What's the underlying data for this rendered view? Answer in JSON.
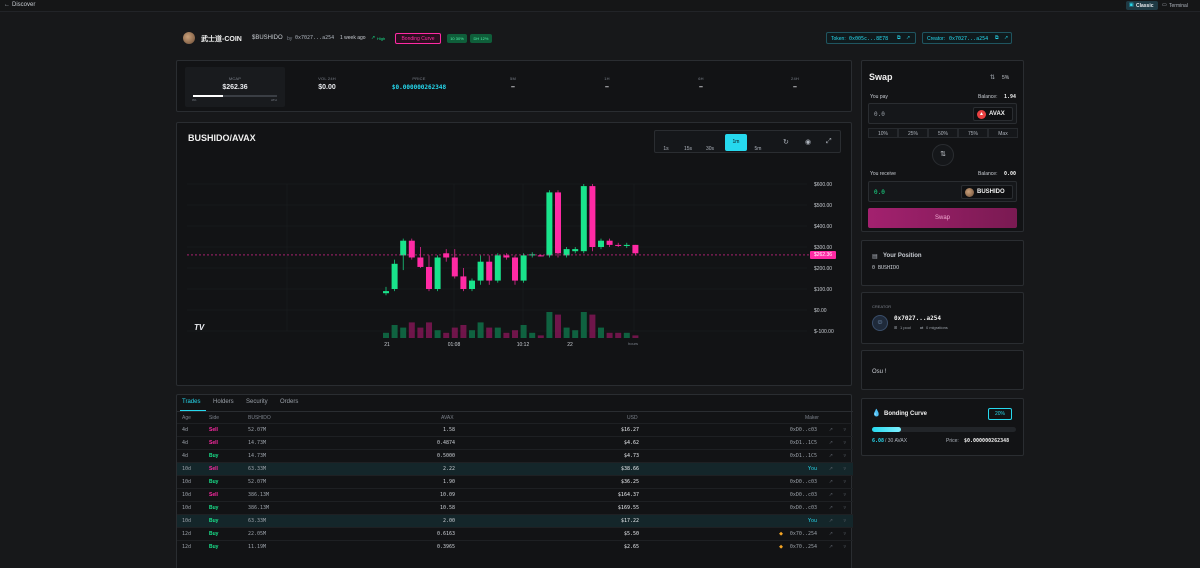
{
  "nav": {
    "discover": "Discover",
    "classic": "Classic",
    "terminal": "Terminal"
  },
  "token": {
    "name": "武士道-COIN",
    "ticker": "$BUSHIDO",
    "by": "by",
    "creator_short": "0x7027...a254",
    "age": "1 week ago",
    "high": "High",
    "bonding": "Bonding Curve",
    "badge_10": "10 30%",
    "badge_dh": "DH 12%",
    "token_label": "Token:",
    "token_addr": "0x005c...8E78",
    "creator_label": "Creator:",
    "creator_addr": "0x7027...a254"
  },
  "stats": {
    "mcap_label": "MCAP",
    "mcap": "$262.36",
    "mcap_lo": "0%",
    "mcap_hi": "ATH",
    "mcap_fill": 0.36,
    "vol_label": "VOL 24H",
    "vol": "$0.00",
    "price_label": "PRICE",
    "price": "$0.000000262348",
    "m5_label": "5M",
    "m5": "–",
    "h1_label": "1H",
    "h1": "–",
    "h6_label": "6H",
    "h6": "–",
    "h24_label": "24H",
    "h24": "–"
  },
  "chart": {
    "pair": "BUSHIDO/AVAX",
    "timeframes": [
      "1s",
      "15s",
      "30s",
      "1m",
      "5m"
    ],
    "active_tf": "1m",
    "price_tag": "$262.36",
    "logo": "TV",
    "x_unit": "hours"
  },
  "chart_data": {
    "type": "candlestick",
    "y_ticks": [
      "$600.00",
      "$500.00",
      "$400.00",
      "$300.00",
      "$200.00",
      "$100.00",
      "$0.00",
      "$-100.00"
    ],
    "ylim": [
      -100,
      600
    ],
    "x_ticks": [
      "21",
      "01:08",
      "10:12",
      "22"
    ],
    "current_price": 262.36,
    "candles": [
      {
        "o": 90,
        "h": 110,
        "l": 70,
        "c": 80,
        "up": true
      },
      {
        "o": 100,
        "h": 240,
        "l": 90,
        "c": 220,
        "up": true
      },
      {
        "o": 260,
        "h": 340,
        "l": 190,
        "c": 330,
        "up": true
      },
      {
        "o": 330,
        "h": 340,
        "l": 240,
        "c": 250,
        "up": false
      },
      {
        "o": 250,
        "h": 300,
        "l": 200,
        "c": 205,
        "up": false
      },
      {
        "o": 205,
        "h": 260,
        "l": 90,
        "c": 100,
        "up": false
      },
      {
        "o": 100,
        "h": 260,
        "l": 90,
        "c": 250,
        "up": true
      },
      {
        "o": 270,
        "h": 290,
        "l": 230,
        "c": 250,
        "up": false
      },
      {
        "o": 250,
        "h": 290,
        "l": 150,
        "c": 160,
        "up": false
      },
      {
        "o": 160,
        "h": 200,
        "l": 90,
        "c": 100,
        "up": false
      },
      {
        "o": 100,
        "h": 150,
        "l": 90,
        "c": 140,
        "up": true
      },
      {
        "o": 140,
        "h": 260,
        "l": 120,
        "c": 230,
        "up": true
      },
      {
        "o": 230,
        "h": 260,
        "l": 120,
        "c": 140,
        "up": false
      },
      {
        "o": 140,
        "h": 270,
        "l": 130,
        "c": 260,
        "up": true
      },
      {
        "o": 260,
        "h": 270,
        "l": 240,
        "c": 250,
        "up": false
      },
      {
        "o": 250,
        "h": 260,
        "l": 120,
        "c": 140,
        "up": false
      },
      {
        "o": 140,
        "h": 270,
        "l": 130,
        "c": 260,
        "up": true
      },
      {
        "o": 260,
        "h": 275,
        "l": 250,
        "c": 265,
        "up": true
      },
      {
        "o": 260,
        "h": 265,
        "l": 255,
        "c": 258,
        "up": false
      },
      {
        "o": 260,
        "h": 570,
        "l": 250,
        "c": 560,
        "up": true
      },
      {
        "o": 560,
        "h": 570,
        "l": 250,
        "c": 270,
        "up": false
      },
      {
        "o": 260,
        "h": 300,
        "l": 250,
        "c": 290,
        "up": true
      },
      {
        "o": 290,
        "h": 300,
        "l": 270,
        "c": 280,
        "up": true
      },
      {
        "o": 280,
        "h": 600,
        "l": 270,
        "c": 590,
        "up": true
      },
      {
        "o": 590,
        "h": 600,
        "l": 280,
        "c": 300,
        "up": false
      },
      {
        "o": 300,
        "h": 340,
        "l": 290,
        "c": 330,
        "up": true
      },
      {
        "o": 330,
        "h": 340,
        "l": 300,
        "c": 310,
        "up": false
      },
      {
        "o": 310,
        "h": 320,
        "l": 300,
        "c": 305,
        "up": false
      },
      {
        "o": 305,
        "h": 320,
        "l": 295,
        "c": 310,
        "up": true
      },
      {
        "o": 310,
        "h": 310,
        "l": 260,
        "c": 270,
        "up": false
      }
    ],
    "volumes": [
      2,
      5,
      4,
      6,
      4,
      6,
      3,
      2,
      4,
      5,
      3,
      6,
      4,
      4,
      2,
      3,
      5,
      2,
      1,
      10,
      9,
      4,
      3,
      10,
      9,
      4,
      2,
      2,
      2,
      1
    ]
  },
  "tabs": [
    "Trades",
    "Holders",
    "Security",
    "Orders"
  ],
  "table": {
    "headers": [
      "Age",
      "Side",
      "BUSHIDO",
      "AVAX",
      "USD",
      "Maker"
    ],
    "rows": [
      {
        "age": "4d",
        "side": "Sell",
        "amt": "52.07M",
        "avax": "1.58",
        "usd": "$16.27",
        "maker": "0xD0..c03",
        "hl": false,
        "dot": false
      },
      {
        "age": "4d",
        "side": "Sell",
        "amt": "14.73M",
        "avax": "0.4874",
        "usd": "$4.62",
        "maker": "0xD1..1C5",
        "hl": false,
        "dot": false
      },
      {
        "age": "4d",
        "side": "Buy",
        "amt": "14.73M",
        "avax": "0.5000",
        "usd": "$4.73",
        "maker": "0xD1..1C5",
        "hl": false,
        "dot": false
      },
      {
        "age": "10d",
        "side": "Sell",
        "amt": "63.33M",
        "avax": "2.22",
        "usd": "$38.66",
        "maker": "You",
        "hl": true,
        "dot": false
      },
      {
        "age": "10d",
        "side": "Buy",
        "amt": "52.07M",
        "avax": "1.90",
        "usd": "$36.25",
        "maker": "0xD0..c03",
        "hl": false,
        "dot": false
      },
      {
        "age": "10d",
        "side": "Sell",
        "amt": "386.13M",
        "avax": "10.09",
        "usd": "$164.37",
        "maker": "0xD0..c03",
        "hl": false,
        "dot": false
      },
      {
        "age": "10d",
        "side": "Buy",
        "amt": "386.13M",
        "avax": "10.58",
        "usd": "$169.55",
        "maker": "0xD0..c03",
        "hl": false,
        "dot": false
      },
      {
        "age": "10d",
        "side": "Buy",
        "amt": "63.33M",
        "avax": "2.00",
        "usd": "$17.22",
        "maker": "You",
        "hl": true,
        "dot": false
      },
      {
        "age": "12d",
        "side": "Buy",
        "amt": "22.05M",
        "avax": "0.6163",
        "usd": "$5.50",
        "maker": "0x70..254",
        "hl": false,
        "dot": true
      },
      {
        "age": "12d",
        "side": "Buy",
        "amt": "11.19M",
        "avax": "0.3965",
        "usd": "$2.65",
        "maker": "0x70..254",
        "hl": false,
        "dot": true
      }
    ]
  },
  "swap": {
    "title": "Swap",
    "slippage": "5%",
    "pay_label": "You pay",
    "pay_balance_label": "Balance:",
    "pay_balance": "1.94",
    "pay_value": "0.0",
    "pay_token": "AVAX",
    "amounts": [
      "10%",
      "25%",
      "50%",
      "75%",
      "Max"
    ],
    "receive_label": "You receive",
    "receive_balance_label": "Balance:",
    "receive_balance": "0.00",
    "receive_value": "0.0",
    "receive_token": "BUSHIDO",
    "button": "Swap"
  },
  "position": {
    "title": "Your Position",
    "value": "0 BUSHIDO"
  },
  "creator": {
    "label": "CREATOR",
    "addr": "0x7027...a254",
    "pools": "1 pool",
    "migrations": "0 migrations"
  },
  "description": {
    "text": "Osu !"
  },
  "bonding": {
    "title": "Bonding Curve",
    "pct": "20%",
    "progress": 0.2,
    "avax_done": "6.08",
    "avax_total": "/ 30 AVAX",
    "price_label": "Price:",
    "price": "$0.000000262348"
  },
  "colors": {
    "green": "#19e38b",
    "pink": "#ff2aa4",
    "cyan": "#26d9ee"
  }
}
